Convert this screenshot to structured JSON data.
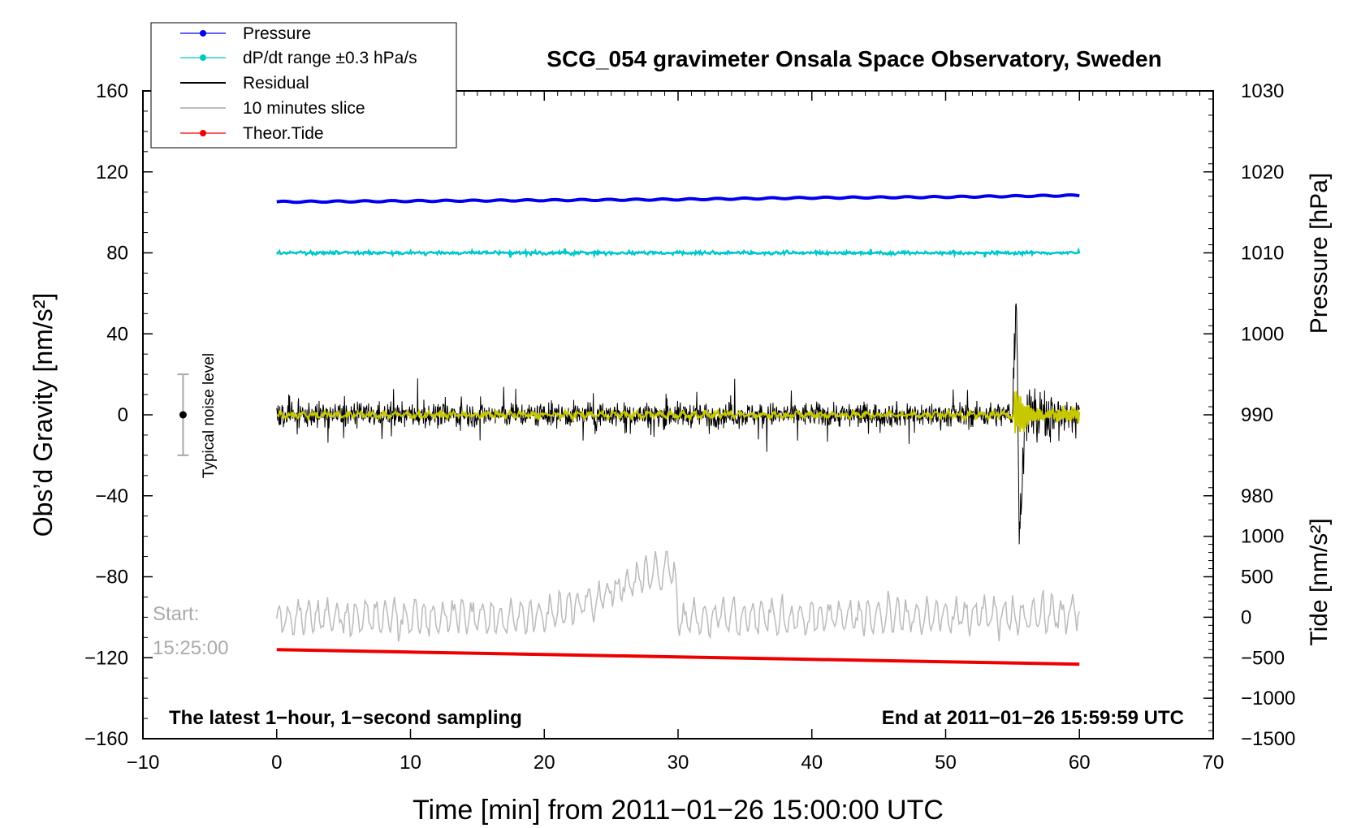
{
  "chart_data": {
    "type": "line",
    "title": "SCG_054 gravimeter Onsala Space Observatory, Sweden",
    "xlabel": "Time [min] from 2011−01−26 15:00:00 UTC",
    "ylabel_left": "Obs’d Gravity [nm/s²]",
    "ylabel_right_top": "Pressure [hPa]",
    "ylabel_right_bottom": "Tide [nm/s²]",
    "xlim": [
      -10,
      70
    ],
    "ylim": [
      -160,
      160
    ],
    "x_ticks": [
      {
        "v": -10,
        "label": "−10"
      },
      {
        "v": 0,
        "label": "0"
      },
      {
        "v": 10,
        "label": "10"
      },
      {
        "v": 20,
        "label": "20"
      },
      {
        "v": 30,
        "label": "30"
      },
      {
        "v": 40,
        "label": "40"
      },
      {
        "v": 50,
        "label": "50"
      },
      {
        "v": 60,
        "label": "60"
      },
      {
        "v": 70,
        "label": "70"
      }
    ],
    "y_ticks": [
      {
        "v": 160,
        "label": "160"
      },
      {
        "v": 120,
        "label": "120"
      },
      {
        "v": 80,
        "label": "80"
      },
      {
        "v": 40,
        "label": "40"
      },
      {
        "v": 0,
        "label": "0"
      },
      {
        "v": -40,
        "label": "−40"
      },
      {
        "v": -80,
        "label": "−80"
      },
      {
        "v": -120,
        "label": "−120"
      },
      {
        "v": -160,
        "label": "−160"
      }
    ],
    "pressure_axis": {
      "ticks": [
        {
          "v": 1030,
          "label": "1030"
        },
        {
          "v": 1020,
          "label": "1020"
        },
        {
          "v": 1010,
          "label": "1010"
        },
        {
          "v": 1000,
          "label": "1000"
        },
        {
          "v": 990,
          "label": "990"
        },
        {
          "v": 980,
          "label": "980"
        }
      ],
      "map_to_gravity": {
        "hpa_at_160": 1030,
        "nm_per_hpa": 4
      }
    },
    "tide_axis": {
      "ticks": [
        {
          "v": 1000,
          "label": "1000"
        },
        {
          "v": 500,
          "label": "500"
        },
        {
          "v": 0,
          "label": "0"
        },
        {
          "v": -500,
          "label": "−500"
        },
        {
          "v": -1000,
          "label": "−1000"
        },
        {
          "v": -1500,
          "label": "−1500"
        }
      ],
      "map_to_gravity": {
        "tide_at_minus160": -1500,
        "tide_per_nm": 25
      }
    },
    "series": [
      {
        "name": "Pressure",
        "color": "#0000ee",
        "unit": "hPa",
        "x": [
          0,
          10,
          20,
          30,
          40,
          50,
          60
        ],
        "values": [
          1016.3,
          1016.4,
          1016.5,
          1016.6,
          1016.8,
          1016.9,
          1017.1
        ]
      },
      {
        "name": "dP/dt range ±0.3 hPa/s",
        "color": "#00c8c8",
        "unit": "nm/s² (plot offset)",
        "x": [
          0,
          60
        ],
        "values": [
          80,
          80
        ]
      },
      {
        "name": "Residual",
        "color": "#000000",
        "unit": "nm/s²",
        "x": [
          0,
          5,
          10,
          15,
          20,
          25,
          30,
          35,
          40,
          45,
          50,
          55,
          55.3,
          55.5,
          56,
          60
        ],
        "values": [
          0,
          0,
          0,
          0,
          0,
          0,
          0,
          0,
          0,
          0,
          0,
          0,
          65,
          -59,
          0,
          0
        ]
      },
      {
        "name": "10 minutes slice",
        "color": "#bbbbbb",
        "unit": "nm/s² (plot offset)",
        "x": [
          0,
          10,
          20,
          29.7,
          30,
          40,
          50,
          60
        ],
        "values": [
          -100,
          -100,
          -100,
          -74,
          -100,
          -100,
          -100,
          -98
        ]
      },
      {
        "name": "Theor.Tide",
        "color": "#ee0000",
        "unit": "nm/s²",
        "x": [
          0,
          10,
          20,
          30,
          40,
          50,
          60
        ],
        "values": [
          -400,
          -430,
          -460,
          -490,
          -520,
          -550,
          -580
        ]
      }
    ],
    "fit_line": {
      "color": "#c8c800"
    },
    "noise_bar": {
      "label": "Typical noise level",
      "x": -7,
      "center": 0,
      "half_range": 20
    },
    "legend_position": "top-left",
    "annotations": {
      "start_label_line1": "Start:",
      "start_label_line2": "15:25:00",
      "bottom_left": "The latest 1−hour, 1−second sampling",
      "bottom_right": "End at 2011−01−26 15:59:59 UTC"
    }
  }
}
